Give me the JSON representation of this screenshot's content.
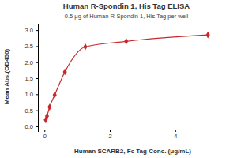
{
  "chart_data": {
    "type": "line",
    "title": "Human R-Spondin 1, His Tag ELISA",
    "subtitle": "0.5 μg of Human R-Spondin 1, His Tag per well",
    "x_label": "Human SCARB2, Fc Tag Conc. (μg/mL)",
    "y_label": "Mean Abs.(OD450)",
    "x": [
      0.039,
      0.078,
      0.156,
      0.313,
      0.625,
      1.25,
      2.5,
      5
    ],
    "values": [
      0.2,
      0.32,
      0.6,
      0.98,
      1.7,
      2.48,
      2.65,
      2.85
    ],
    "color": "#c8282d",
    "marker": "diamond",
    "xlim": [
      -0.2,
      5.6
    ],
    "xticks": [
      0,
      2,
      4
    ],
    "ylim": [
      -0.1,
      3.2
    ],
    "yticks": [
      {
        "value": 0,
        "label": "0.0"
      },
      {
        "value": 0.5,
        "label": "0.5"
      },
      {
        "value": 1,
        "label": "1.0"
      },
      {
        "value": 1.5,
        "label": "1.5"
      },
      {
        "value": 2,
        "label": "2.0"
      },
      {
        "value": 2.5,
        "label": "2.5"
      },
      {
        "value": 3,
        "label": "3.0"
      }
    ],
    "grid": false
  }
}
